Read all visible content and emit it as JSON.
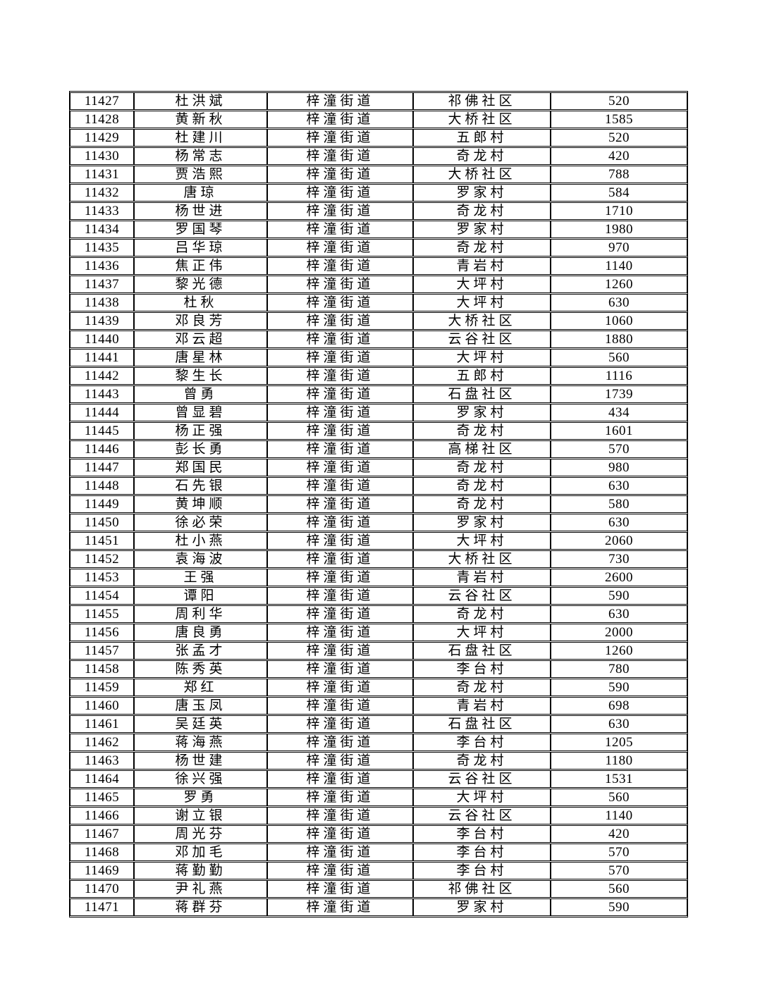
{
  "document": {
    "background_color": "#ffffff",
    "text_color": "#000000",
    "border_color": "#000000"
  },
  "table": {
    "column_keys": [
      "serial",
      "name",
      "street",
      "village",
      "amount"
    ],
    "first_serial": "11427",
    "last_serial": "11471",
    "rows": [
      [
        "11427",
        "杜洪斌",
        "梓潼街道",
        "祁佛社区",
        "520"
      ],
      [
        "11428",
        "黄新秋",
        "梓潼街道",
        "大桥社区",
        "1585"
      ],
      [
        "11429",
        "杜建川",
        "梓潼街道",
        "五郎村",
        "520"
      ],
      [
        "11430",
        "杨常志",
        "梓潼街道",
        "奇龙村",
        "420"
      ],
      [
        "11431",
        "贾浩熙",
        "梓潼街道",
        "大桥社区",
        "788"
      ],
      [
        "11432",
        "唐琼",
        "梓潼街道",
        "罗家村",
        "584"
      ],
      [
        "11433",
        "杨世进",
        "梓潼街道",
        "奇龙村",
        "1710"
      ],
      [
        "11434",
        "罗国琴",
        "梓潼街道",
        "罗家村",
        "1980"
      ],
      [
        "11435",
        "吕华琼",
        "梓潼街道",
        "奇龙村",
        "970"
      ],
      [
        "11436",
        "焦正伟",
        "梓潼街道",
        "青岩村",
        "1140"
      ],
      [
        "11437",
        "黎光德",
        "梓潼街道",
        "大坪村",
        "1260"
      ],
      [
        "11438",
        "杜秋",
        "梓潼街道",
        "大坪村",
        "630"
      ],
      [
        "11439",
        "邓良芳",
        "梓潼街道",
        "大桥社区",
        "1060"
      ],
      [
        "11440",
        "邓云超",
        "梓潼街道",
        "云谷社区",
        "1880"
      ],
      [
        "11441",
        "唐星林",
        "梓潼街道",
        "大坪村",
        "560"
      ],
      [
        "11442",
        "黎生长",
        "梓潼街道",
        "五郎村",
        "1116"
      ],
      [
        "11443",
        "曾勇",
        "梓潼街道",
        "石盘社区",
        "1739"
      ],
      [
        "11444",
        "曾显碧",
        "梓潼街道",
        "罗家村",
        "434"
      ],
      [
        "11445",
        "杨正强",
        "梓潼街道",
        "奇龙村",
        "1601"
      ],
      [
        "11446",
        "彭长勇",
        "梓潼街道",
        "高梯社区",
        "570"
      ],
      [
        "11447",
        "郑国民",
        "梓潼街道",
        "奇龙村",
        "980"
      ],
      [
        "11448",
        "石先银",
        "梓潼街道",
        "奇龙村",
        "630"
      ],
      [
        "11449",
        "黄坤顺",
        "梓潼街道",
        "奇龙村",
        "580"
      ],
      [
        "11450",
        "徐必荣",
        "梓潼街道",
        "罗家村",
        "630"
      ],
      [
        "11451",
        "杜小燕",
        "梓潼街道",
        "大坪村",
        "2060"
      ],
      [
        "11452",
        "袁海波",
        "梓潼街道",
        "大桥社区",
        "730"
      ],
      [
        "11453",
        "王强",
        "梓潼街道",
        "青岩村",
        "2600"
      ],
      [
        "11454",
        "谭阳",
        "梓潼街道",
        "云谷社区",
        "590"
      ],
      [
        "11455",
        "周利华",
        "梓潼街道",
        "奇龙村",
        "630"
      ],
      [
        "11456",
        "唐良勇",
        "梓潼街道",
        "大坪村",
        "2000"
      ],
      [
        "11457",
        "张孟才",
        "梓潼街道",
        "石盘社区",
        "1260"
      ],
      [
        "11458",
        "陈秀英",
        "梓潼街道",
        "李台村",
        "780"
      ],
      [
        "11459",
        "郑红",
        "梓潼街道",
        "奇龙村",
        "590"
      ],
      [
        "11460",
        "唐玉凤",
        "梓潼街道",
        "青岩村",
        "698"
      ],
      [
        "11461",
        "吴廷英",
        "梓潼街道",
        "石盘社区",
        "630"
      ],
      [
        "11462",
        "蒋海燕",
        "梓潼街道",
        "李台村",
        "1205"
      ],
      [
        "11463",
        "杨世建",
        "梓潼街道",
        "奇龙村",
        "1180"
      ],
      [
        "11464",
        "徐兴强",
        "梓潼街道",
        "云谷社区",
        "1531"
      ],
      [
        "11465",
        "罗勇",
        "梓潼街道",
        "大坪村",
        "560"
      ],
      [
        "11466",
        "谢立银",
        "梓潼街道",
        "云谷社区",
        "1140"
      ],
      [
        "11467",
        "周光芬",
        "梓潼街道",
        "李台村",
        "420"
      ],
      [
        "11468",
        "邓加毛",
        "梓潼街道",
        "李台村",
        "570"
      ],
      [
        "11469",
        "蒋勤勤",
        "梓潼街道",
        "李台村",
        "570"
      ],
      [
        "11470",
        "尹礼燕",
        "梓潼街道",
        "祁佛社区",
        "560"
      ],
      [
        "11471",
        "蒋群芬",
        "梓潼街道",
        "罗家村",
        "590"
      ]
    ]
  }
}
